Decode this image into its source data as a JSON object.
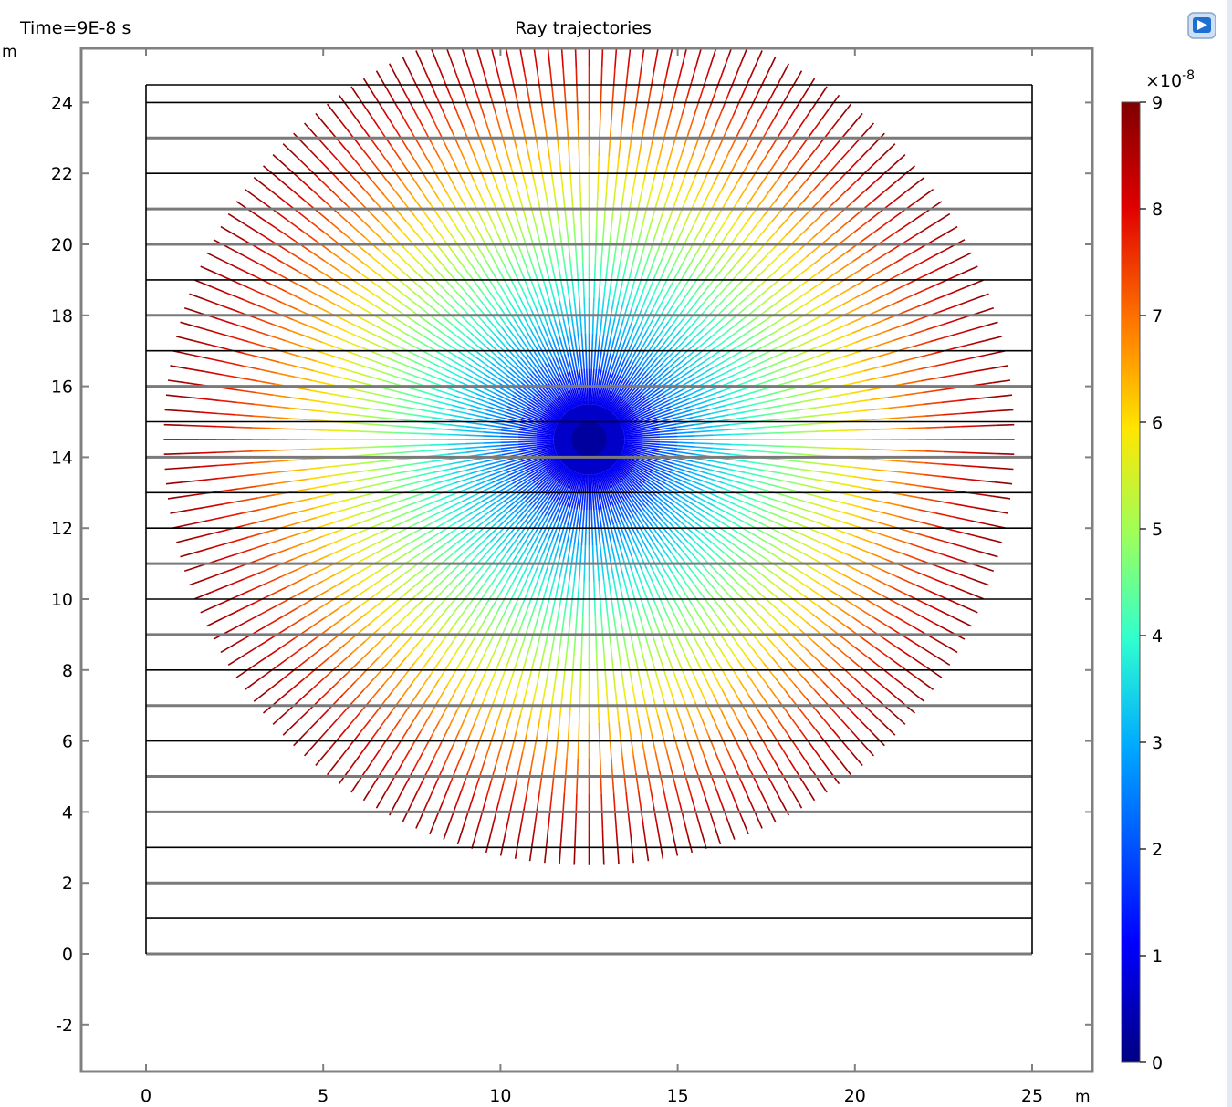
{
  "header": {
    "time_label": "Time=9E-8 s",
    "title": "Ray trajectories"
  },
  "colors": {
    "axis_frame": "#808080",
    "plate_line_dark": "#000000",
    "plate_line_gray": "#7a7a7a",
    "colormap": [
      "#000080",
      "#0000ff",
      "#00aaff",
      "#2fffcf",
      "#9dff5a",
      "#ffe600",
      "#ff7700",
      "#e00000",
      "#800000"
    ]
  },
  "icons": {
    "app_icon": "comsol-app-icon"
  },
  "chart_data": {
    "type": "line",
    "title": "Ray trajectories",
    "annotation": "Time=9E-8 s",
    "xlabel": "m",
    "ylabel": "m",
    "xlim": [
      -1.85,
      26.75
    ],
    "ylim": [
      -3.35,
      25.6
    ],
    "xticks": [
      0,
      5,
      10,
      15,
      20,
      25
    ],
    "xtick_labels": [
      "0",
      "5",
      "10",
      "15",
      "20",
      "25"
    ],
    "yticks": [
      -2,
      0,
      2,
      4,
      6,
      8,
      10,
      12,
      14,
      16,
      18,
      20,
      22,
      24
    ],
    "ytick_labels": [
      "-2",
      "0",
      "2",
      "4",
      "6",
      "8",
      "10",
      "12",
      "14",
      "16",
      "18",
      "20",
      "22",
      "24"
    ],
    "grid": false,
    "source": {
      "x": 12.5,
      "y": 14.5
    },
    "ray_count": 180,
    "ray_length": 12.0,
    "box": {
      "x": [
        0,
        25
      ],
      "y": [
        0,
        24.5
      ]
    },
    "plates": [
      {
        "y": 0,
        "style": "gray"
      },
      {
        "y": 1,
        "style": "dark"
      },
      {
        "y": 2,
        "style": "gray"
      },
      {
        "y": 3,
        "style": "dark"
      },
      {
        "y": 4,
        "style": "gray"
      },
      {
        "y": 5,
        "style": "gray"
      },
      {
        "y": 6,
        "style": "dark"
      },
      {
        "y": 7,
        "style": "gray"
      },
      {
        "y": 8,
        "style": "dark"
      },
      {
        "y": 9,
        "style": "gray"
      },
      {
        "y": 10,
        "style": "dark"
      },
      {
        "y": 11,
        "style": "gray"
      },
      {
        "y": 12,
        "style": "dark"
      },
      {
        "y": 13,
        "style": "dark"
      },
      {
        "y": 14,
        "style": "gray"
      },
      {
        "y": 15,
        "style": "dark"
      },
      {
        "y": 16,
        "style": "gray"
      },
      {
        "y": 17,
        "style": "dark"
      },
      {
        "y": 18,
        "style": "gray"
      },
      {
        "y": 19,
        "style": "dark"
      },
      {
        "y": 20,
        "style": "gray"
      },
      {
        "y": 21,
        "style": "gray"
      },
      {
        "y": 22,
        "style": "dark"
      },
      {
        "y": 23,
        "style": "gray"
      },
      {
        "y": 24,
        "style": "dark"
      },
      {
        "y": 24.5,
        "style": "dark"
      }
    ],
    "colorbar": {
      "min": 0,
      "max": 9,
      "multiplier": "×10",
      "exponent": "-8",
      "ticks": [
        0,
        1,
        2,
        3,
        4,
        5,
        6,
        7,
        8,
        9
      ],
      "tick_labels": [
        "0",
        "1",
        "2",
        "3",
        "4",
        "5",
        "6",
        "7",
        "8",
        "9"
      ]
    }
  }
}
